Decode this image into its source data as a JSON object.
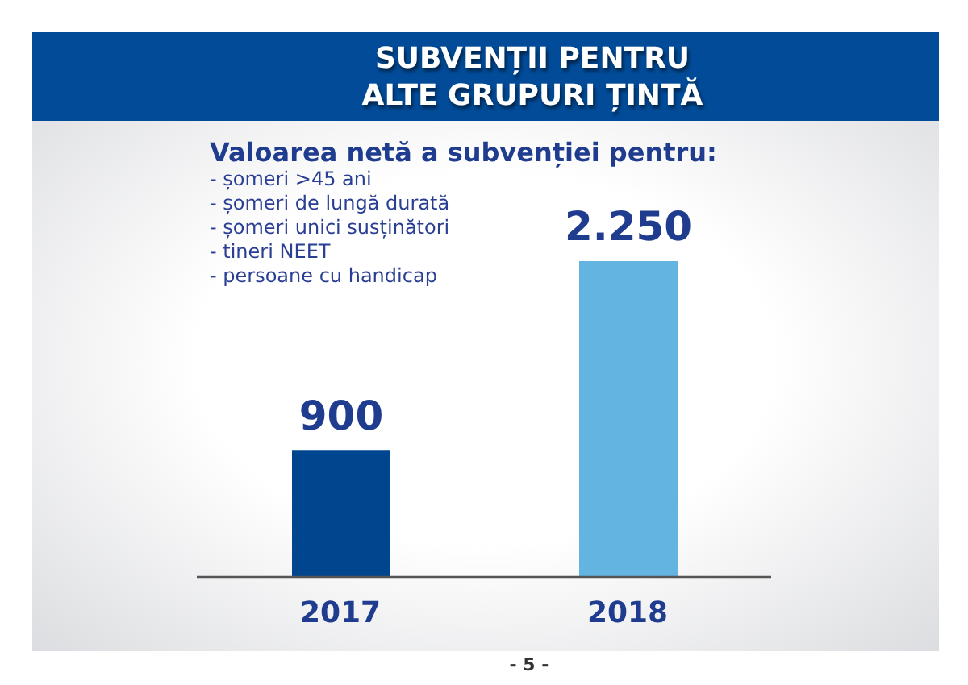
{
  "chart_data": {
    "type": "bar",
    "title": "SUBVENȚII PENTRU\nALTE GRUPURI ȚINTĂ",
    "subtitle": "Valoarea netă a subvenției pentru:",
    "annotations": [
      "- șomeri >45 ani",
      "- șomeri de lungă durată",
      "- șomeri unici susținători",
      "- tineri NEET",
      "- persoane cu handicap",
      "- 5 -"
    ],
    "categories": [
      "2017",
      "2018"
    ],
    "values": [
      900,
      2250
    ],
    "value_labels": [
      "900",
      "2.250"
    ],
    "colors": [
      "#00468f",
      "#63b4e0"
    ],
    "tick_labels": "x"
  }
}
